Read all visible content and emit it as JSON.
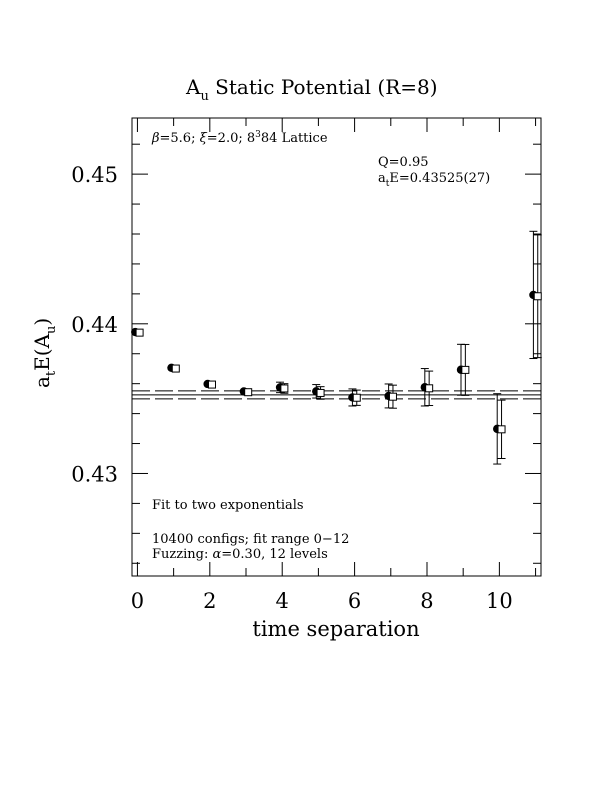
{
  "chart_data": {
    "type": "scatter",
    "title": "A",
    "title_sub": "u",
    "title_rest": " Static Potential (R=8)",
    "xlabel": "time separation",
    "ylabel_pre": "a",
    "ylabel_sub1": "t",
    "ylabel_mid": "E(A",
    "ylabel_sub2": "u",
    "ylabel_post": ")",
    "xlim": [
      -0.15,
      11.15
    ],
    "ylim": [
      0.42315,
      0.45375
    ],
    "x_ticks": [
      0,
      2,
      4,
      6,
      8,
      10
    ],
    "x_tick_labels": [
      "0",
      "2",
      "4",
      "6",
      "8",
      "10"
    ],
    "y_ticks": [
      0.43,
      0.44,
      0.45
    ],
    "y_tick_labels": [
      "0.43",
      "0.44",
      "0.45"
    ],
    "lattice_text": "β=5.6; ξ=2.0; 8³84 Lattice",
    "lattice_parts": {
      "beta": "β",
      "beta_val": "=5.6; ",
      "xi": "ξ",
      "xi_val": "=2.0; ",
      "l1": "8",
      "l1_sup": "3",
      "l2": "84 Lattice"
    },
    "q_text": "Q=0.95",
    "fit_text_pre": "a",
    "fit_text_sub": "t",
    "fit_text_post": "E=0.43525(27)",
    "fit_label": "Fit to two exponentials",
    "configs_text": "10400 configs; fit range 0−12",
    "fuzzing_pre": "Fuzzing: ",
    "fuzzing_alpha": "α",
    "fuzzing_post": "=0.30, 12 levels",
    "fit": {
      "value": 0.43525,
      "error": 0.00027
    },
    "series": [
      {
        "marker": "filled-circle",
        "points": [
          {
            "x": 0,
            "y": 0.43945,
            "err": 0.0
          },
          {
            "x": 1,
            "y": 0.43706,
            "err": 0.0
          },
          {
            "x": 2,
            "y": 0.43598,
            "err": 0.0
          },
          {
            "x": 3,
            "y": 0.43548,
            "err": 0.0
          },
          {
            "x": 4,
            "y": 0.43575,
            "err": 0.00035
          },
          {
            "x": 5,
            "y": 0.43549,
            "err": 0.00045
          },
          {
            "x": 6,
            "y": 0.43508,
            "err": 0.00057
          },
          {
            "x": 7,
            "y": 0.43518,
            "err": 0.0008
          },
          {
            "x": 8,
            "y": 0.43576,
            "err": 0.00125
          },
          {
            "x": 9,
            "y": 0.43693,
            "err": 0.0017
          },
          {
            "x": 10,
            "y": 0.43298,
            "err": 0.00235
          },
          {
            "x": 11,
            "y": 0.44193,
            "err": 0.00425
          }
        ]
      },
      {
        "marker": "open-square",
        "points": [
          {
            "x": 0,
            "y": 0.43941,
            "err": 0.0
          },
          {
            "x": 1,
            "y": 0.43701,
            "err": 0.0
          },
          {
            "x": 2,
            "y": 0.43594,
            "err": 0.0
          },
          {
            "x": 3,
            "y": 0.43543,
            "err": 0.0
          },
          {
            "x": 4,
            "y": 0.43568,
            "err": 0.00032
          },
          {
            "x": 5,
            "y": 0.43538,
            "err": 0.00042
          },
          {
            "x": 6,
            "y": 0.43506,
            "err": 0.00051
          },
          {
            "x": 7,
            "y": 0.43513,
            "err": 0.00077
          },
          {
            "x": 8,
            "y": 0.43569,
            "err": 0.00115
          },
          {
            "x": 9,
            "y": 0.43692,
            "err": 0.0017
          },
          {
            "x": 10,
            "y": 0.43295,
            "err": 0.00195
          },
          {
            "x": 11,
            "y": 0.44184,
            "err": 0.0041
          }
        ]
      }
    ],
    "grid": false,
    "legend": "none"
  }
}
